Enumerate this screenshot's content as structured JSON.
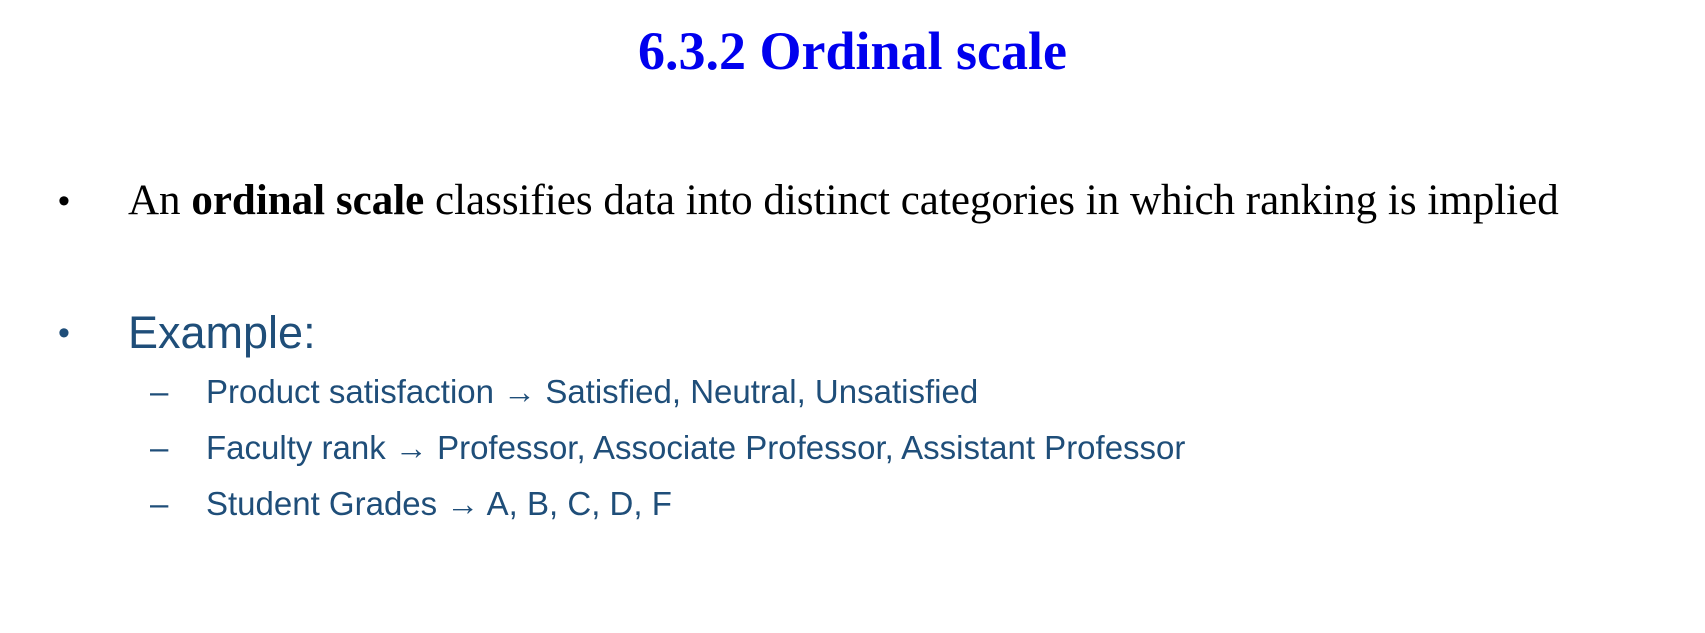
{
  "slide": {
    "title": "6.3.2 Ordinal scale",
    "bullet_glyph": "•",
    "dash_glyph": "–",
    "bullet_1": {
      "prefix": "An ",
      "term": "ordinal scale",
      "suffix": " classifies data into distinct categories in which ranking is implied"
    },
    "bullet_2": {
      "text": "Example:"
    },
    "examples": [
      {
        "text": "Product satisfaction → Satisfied, Neutral, Unsatisfied"
      },
      {
        "text": "Faculty rank → Professor, Associate Professor, Assistant Professor"
      },
      {
        "text": "Student Grades → A, B, C, D, F"
      }
    ],
    "colors": {
      "title": "#0000ee",
      "body": "#000000",
      "accent_text": "#1f4e79"
    }
  }
}
